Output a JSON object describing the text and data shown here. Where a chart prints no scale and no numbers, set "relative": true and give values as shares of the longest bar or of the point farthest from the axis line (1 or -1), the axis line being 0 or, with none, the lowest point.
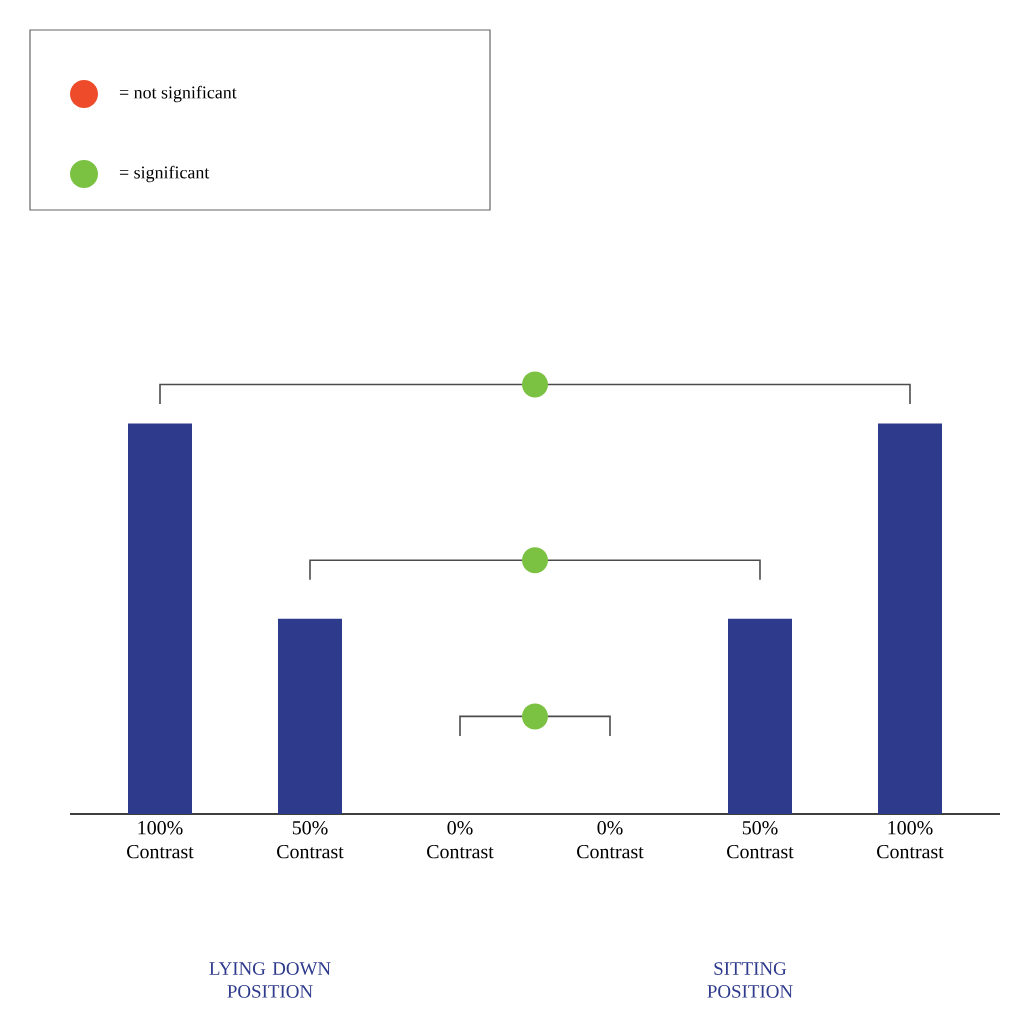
{
  "chart_data": {
    "type": "bar",
    "relative": true,
    "categories": [
      "100% Contrast",
      "50% Contrast",
      "0% Contrast",
      "0% Contrast",
      "50% Contrast",
      "100% Contrast"
    ],
    "values": [
      1,
      0.5,
      0,
      0,
      0.5,
      1
    ],
    "color": "#2e3a8c",
    "annotations": [
      "= not significant",
      "= significant",
      "LYING DOWN POSITION",
      "SITTING POSITION"
    ]
  }
}
